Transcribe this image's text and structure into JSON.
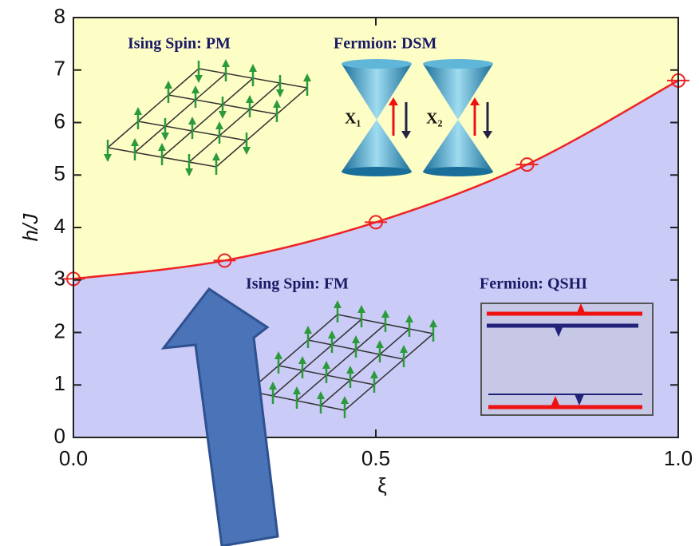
{
  "chart_data": {
    "type": "line",
    "xlabel": "ξ",
    "ylabel": "h/J",
    "x": [
      0,
      0.25,
      0.5,
      0.75,
      1.0
    ],
    "series": [
      {
        "color": "#ee2222",
        "values": [
          3.02,
          3.37,
          4.1,
          5.2,
          6.8
        ]
      }
    ],
    "xlim": [
      0,
      1
    ],
    "ylim": [
      0,
      8
    ],
    "xticks": [
      {
        "value": 0,
        "label": "0.0"
      },
      {
        "value": 0.5,
        "label": "0.5"
      },
      {
        "value": 1,
        "label": "1.0"
      }
    ],
    "yticks": [
      0,
      1,
      2,
      3,
      4,
      5,
      6,
      7,
      8
    ],
    "fill_above": "#fdfdc6",
    "fill_below": "#cbcbf7",
    "annotations": [
      "Ising Spin: PM",
      "Fermion: DSM",
      "Ising Spin: FM",
      "Fermion: QSHI"
    ],
    "cone_labels": [
      "X₁",
      "X₂"
    ]
  }
}
